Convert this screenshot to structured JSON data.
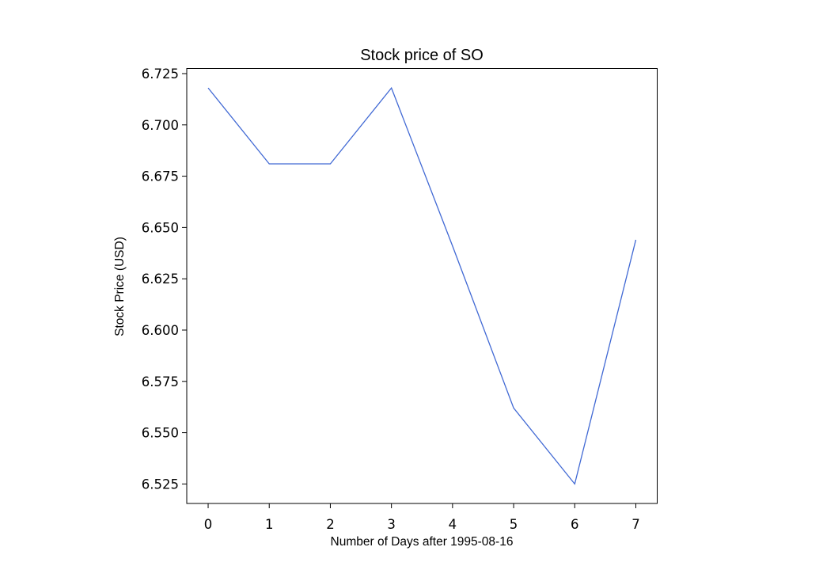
{
  "chart_data": {
    "type": "line",
    "title": "Stock price of SO",
    "xlabel": "Number of Days after 1995-08-16",
    "ylabel": "Stock Price (USD)",
    "x": [
      0,
      1,
      2,
      3,
      4,
      5,
      6,
      7
    ],
    "series": [
      {
        "values": [
          6.718,
          6.681,
          6.681,
          6.718,
          6.641,
          6.562,
          6.525,
          6.644
        ]
      }
    ],
    "xlim": [
      -0.35,
      7.35
    ],
    "ylim": [
      6.5155,
      6.7275
    ],
    "xticks": [
      "0",
      "1",
      "2",
      "3",
      "4",
      "5",
      "6",
      "7"
    ],
    "yticks": [
      "6.525",
      "6.550",
      "6.575",
      "6.600",
      "6.625",
      "6.650",
      "6.675",
      "6.700",
      "6.725"
    ],
    "grid": false,
    "line_color": "#4169d4"
  }
}
